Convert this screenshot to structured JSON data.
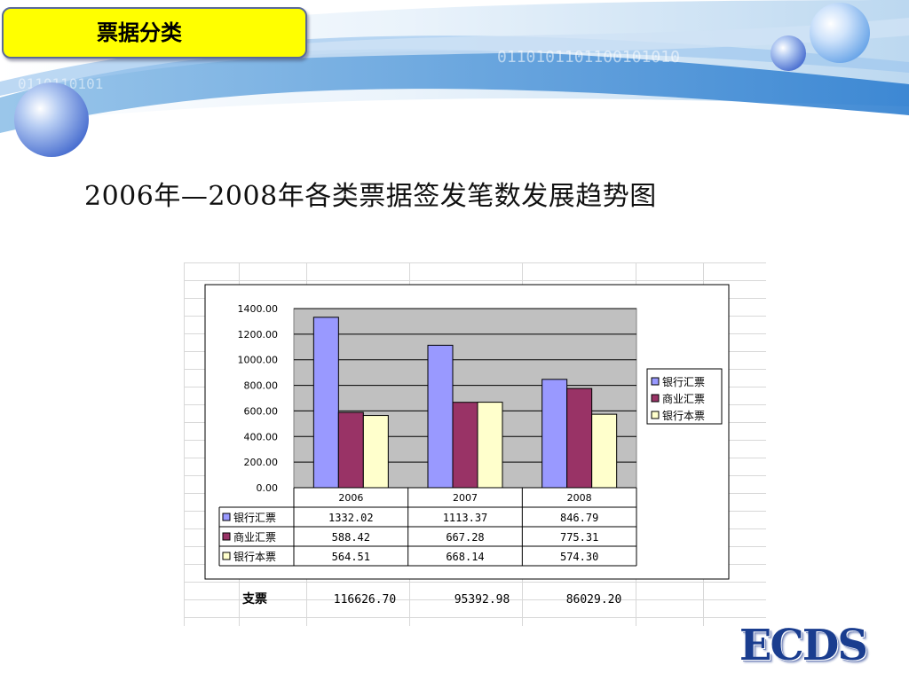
{
  "header": {
    "tag_label": "票据分类"
  },
  "slide_title": "2006年—2008年各类票据签发笔数发展趋势图",
  "logo_text": "ECDS",
  "colors": {
    "tag_bg": "#ffff00",
    "series": [
      "#9999ff",
      "#993366",
      "#ffffcc"
    ],
    "plot_bg": "#c0c0c0",
    "brand": "#1a3d8f"
  },
  "chart_data": {
    "type": "bar",
    "categories": [
      "2006",
      "2007",
      "2008"
    ],
    "series": [
      {
        "name": "银行汇票",
        "values": [
          1332.02,
          1113.37,
          846.79
        ],
        "labels": [
          "1332.02",
          "1113.37",
          "846.79"
        ]
      },
      {
        "name": "商业汇票",
        "values": [
          588.42,
          667.28,
          775.31
        ],
        "labels": [
          "588.42",
          "667.28",
          "775.31"
        ]
      },
      {
        "name": "银行本票",
        "values": [
          564.51,
          668.14,
          574.3
        ],
        "labels": [
          "564.51",
          "668.14",
          "574.30"
        ]
      }
    ],
    "ylim": [
      0,
      1400
    ],
    "yticks": [
      "0.00",
      "200.00",
      "400.00",
      "600.00",
      "800.00",
      "1000.00",
      "1200.00",
      "1400.00"
    ],
    "grid": true,
    "legend": "right",
    "data_table": true
  },
  "extra_row": {
    "label": "支票",
    "values": [
      "116626.70",
      "95392.98",
      "86029.20"
    ]
  }
}
